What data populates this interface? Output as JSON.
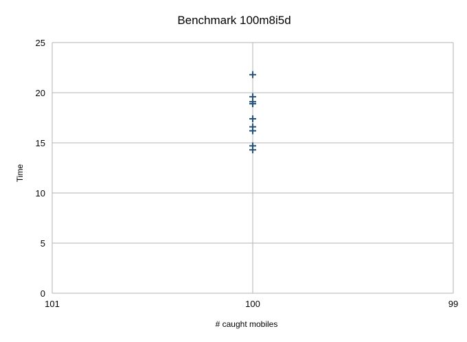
{
  "chart_data": {
    "type": "scatter",
    "title": "Benchmark 100m8i5d",
    "xlabel": "# caught mobiles",
    "ylabel": "Time",
    "x_ticks": [
      "101",
      "100",
      "99"
    ],
    "x_range": [
      101,
      99
    ],
    "ylim": [
      0,
      25
    ],
    "y_ticks": [
      "0",
      "5",
      "10",
      "15",
      "20",
      "25"
    ],
    "grid": true,
    "legend": "none",
    "marker": "plus",
    "series": [
      {
        "color": "#1f4e79",
        "points": [
          {
            "x": 100,
            "y": 21.8
          },
          {
            "x": 100,
            "y": 19.6
          },
          {
            "x": 100,
            "y": 19.1
          },
          {
            "x": 100,
            "y": 18.9
          },
          {
            "x": 100,
            "y": 17.4
          },
          {
            "x": 100,
            "y": 16.6
          },
          {
            "x": 100,
            "y": 16.2
          },
          {
            "x": 100,
            "y": 14.7
          },
          {
            "x": 100,
            "y": 14.3
          }
        ]
      }
    ]
  }
}
